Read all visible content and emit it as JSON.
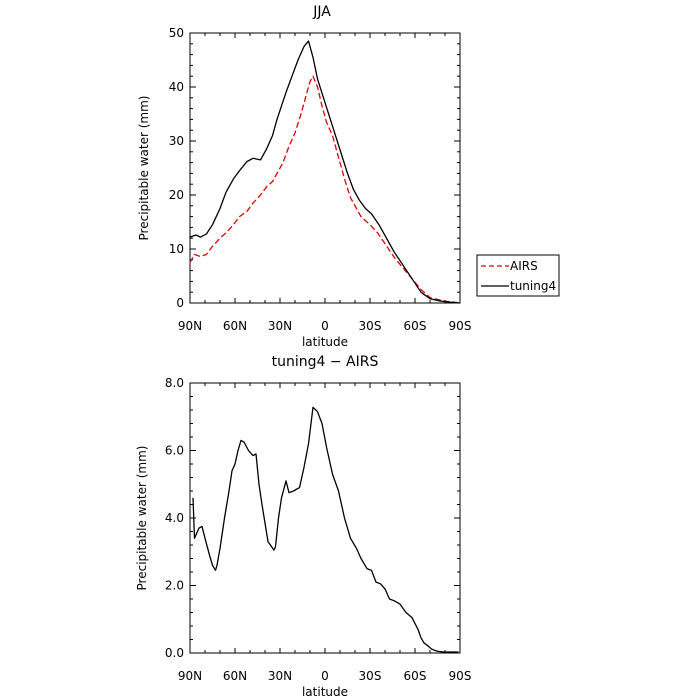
{
  "chart_data": [
    {
      "type": "line",
      "title": "JJA",
      "xlabel": "latitude",
      "ylabel": "Precipitable water (mm)",
      "xlim": [
        90,
        -90
      ],
      "ylim": [
        0,
        50
      ],
      "x_ticks": [
        90,
        60,
        30,
        0,
        -30,
        -60,
        -90
      ],
      "x_tick_labels": [
        "90N",
        "60N",
        "30N",
        "0",
        "30S",
        "60S",
        "90S"
      ],
      "y_ticks": [
        0,
        10,
        20,
        30,
        40,
        50
      ],
      "y_tick_labels": [
        "0",
        "10",
        "20",
        "30",
        "40",
        "50"
      ],
      "grid": false,
      "legend_position": "right-outside",
      "series": [
        {
          "name": "AIRS",
          "color": "#e00000",
          "dash": "dashed",
          "x": [
            90,
            87,
            83,
            79,
            75,
            70,
            66,
            61,
            57,
            52,
            48,
            43,
            39,
            35,
            32,
            28,
            24,
            20,
            16,
            13,
            10,
            8,
            5,
            2,
            -1,
            -5,
            -9,
            -13,
            -17,
            -21,
            -24,
            -30,
            -35,
            -40,
            -46,
            -52,
            -58,
            -64,
            -70,
            -76,
            -81,
            -85,
            -88,
            -90
          ],
          "y": [
            7.5,
            9,
            8.6,
            9,
            10.5,
            12,
            13,
            14.5,
            16,
            17,
            18.5,
            20,
            21.5,
            22.5,
            24,
            26,
            29,
            31.5,
            35,
            38,
            41,
            42,
            40,
            36.5,
            33.5,
            31,
            27,
            23,
            19.5,
            17.5,
            16,
            14.5,
            13,
            11,
            8.5,
            6.5,
            4.5,
            2.5,
            1,
            0.6,
            0.3,
            0.2,
            0.1,
            0
          ]
        },
        {
          "name": "tuning4",
          "color": "#000000",
          "dash": "solid",
          "x": [
            90,
            86,
            83,
            79,
            75,
            70,
            66,
            61,
            57,
            52,
            48,
            43,
            39,
            35,
            32,
            29,
            26,
            22,
            18,
            14,
            11,
            8,
            5,
            1,
            -3,
            -7,
            -11,
            -15,
            -19,
            -23,
            -27,
            -31,
            -36,
            -41,
            -46,
            -52,
            -58,
            -64,
            -70,
            -76,
            -81,
            -86,
            -90
          ],
          "y": [
            12.2,
            12.6,
            12.2,
            12.8,
            14.5,
            17.5,
            20.5,
            23,
            24.5,
            26.2,
            26.8,
            26.5,
            28.5,
            31,
            34,
            36.5,
            39,
            42,
            45,
            47.5,
            48.5,
            45.5,
            41.5,
            38,
            34.5,
            31,
            27.5,
            24,
            21,
            19,
            17.5,
            16.5,
            14.5,
            12,
            9.5,
            7,
            4.5,
            2,
            0.8,
            0.4,
            0.2,
            0.1,
            0
          ]
        }
      ]
    },
    {
      "type": "line",
      "title": "tuning4 − AIRS",
      "xlabel": "latitude",
      "ylabel": "Precipitable water (mm)",
      "xlim": [
        90,
        -90
      ],
      "ylim": [
        0,
        8
      ],
      "x_ticks": [
        90,
        60,
        30,
        0,
        -30,
        -60,
        -90
      ],
      "x_tick_labels": [
        "90N",
        "60N",
        "30N",
        "0",
        "30S",
        "60S",
        "90S"
      ],
      "y_ticks": [
        0,
        2,
        4,
        6,
        8
      ],
      "y_tick_labels": [
        "0.0",
        "2.0",
        "4.0",
        "6.0",
        "8.0"
      ],
      "grid": false,
      "series": [
        {
          "color": "#000000",
          "dash": "solid",
          "x": [
            88,
            87,
            84,
            82,
            80,
            77,
            75,
            73,
            72,
            70,
            67,
            64,
            62,
            60,
            58,
            56,
            54,
            51,
            48,
            46,
            44,
            42,
            38,
            34,
            33,
            31,
            29,
            26,
            24,
            21,
            17,
            14,
            11,
            8,
            5,
            2,
            -1,
            -5,
            -9,
            -13,
            -17,
            -21,
            -24,
            -28,
            -31,
            -34,
            -37,
            -40,
            -43,
            -46,
            -50,
            -54,
            -58,
            -62,
            -64,
            -66,
            -69,
            -71,
            -73,
            -75,
            -77,
            -79,
            -81,
            -84,
            -87,
            -89
          ],
          "y": [
            4.6,
            3.4,
            3.7,
            3.75,
            3.4,
            2.9,
            2.6,
            2.45,
            2.6,
            3.1,
            4,
            4.8,
            5.4,
            5.6,
            6,
            6.3,
            6.25,
            6.0,
            5.85,
            5.9,
            5.0,
            4.4,
            3.3,
            3.05,
            3.15,
            4.0,
            4.6,
            5.1,
            4.75,
            4.8,
            4.9,
            5.5,
            6.2,
            7.28,
            7.15,
            6.8,
            6.1,
            5.3,
            4.8,
            4.0,
            3.4,
            3.1,
            2.8,
            2.5,
            2.45,
            2.1,
            2.05,
            1.9,
            1.6,
            1.55,
            1.45,
            1.2,
            1.05,
            0.7,
            0.45,
            0.3,
            0.2,
            0.12,
            0.08,
            0.05,
            0.04,
            0.03,
            0.03,
            0.03,
            0.03,
            0.03
          ]
        }
      ]
    }
  ]
}
